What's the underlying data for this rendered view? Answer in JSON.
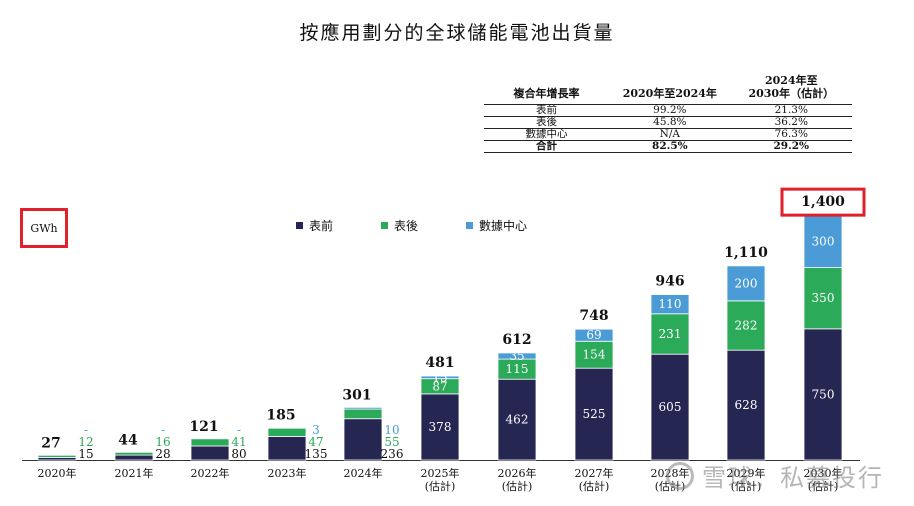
{
  "title": "按應用劃分的全球儲能電池出貨量",
  "unit": "GWh",
  "cagr_table": {
    "headers": [
      "複合年增長率",
      "2020年至2024年",
      "2024年至\n2030年（估計）"
    ],
    "rows": [
      [
        "表前",
        "99.2%",
        "21.3%"
      ],
      [
        "表後",
        "45.8%",
        "36.2%"
      ],
      [
        "數據中心",
        "N/A",
        "76.3%"
      ],
      [
        "合計",
        "82.5%",
        "29.2%"
      ]
    ]
  },
  "watermark": "雪球：私募投行",
  "colors": {
    "front": "#262653",
    "behind": "#2baa5a",
    "datacenter": "#4a9bd6",
    "highlight": "#e0202a"
  },
  "chart_data": {
    "type": "bar",
    "stacked": true,
    "unit": "GWh",
    "categories": [
      "2020年",
      "2021年",
      "2022年",
      "2023年",
      "2024年",
      "2025年\n(估計)",
      "2026年\n(估計)",
      "2027年\n(估計)",
      "2028年\n(估計)",
      "2029年\n(估計)",
      "2030年\n(估計)"
    ],
    "series": [
      {
        "name": "表前",
        "values": [
          15,
          28,
          80,
          135,
          236,
          378,
          462,
          525,
          605,
          628,
          750
        ]
      },
      {
        "name": "表後",
        "values": [
          12,
          16,
          41,
          47,
          55,
          87,
          115,
          154,
          231,
          282,
          350
        ]
      },
      {
        "name": "數據中心",
        "values": [
          0,
          0,
          0,
          3,
          10,
          15,
          35,
          69,
          110,
          200,
          300
        ]
      }
    ],
    "value_labels": {
      "表前": [
        "15",
        "28",
        "80",
        "135",
        "236",
        "378",
        "462",
        "525",
        "605",
        "628",
        "750"
      ],
      "表後": [
        "12",
        "16",
        "41",
        "47",
        "55",
        "87",
        "115",
        "154",
        "231",
        "282",
        "350"
      ],
      "數據中心": [
        "-",
        "-",
        "-",
        "3",
        "10",
        "15",
        "35",
        "69",
        "110",
        "200",
        "300"
      ]
    },
    "totals": [
      "27",
      "44",
      "121",
      "185",
      "301",
      "481",
      "612",
      "748",
      "946",
      "1,110",
      "1,400"
    ],
    "highlighted_total_index": 10,
    "ylim": [
      0,
      1400
    ],
    "legend_position": "top-center"
  }
}
